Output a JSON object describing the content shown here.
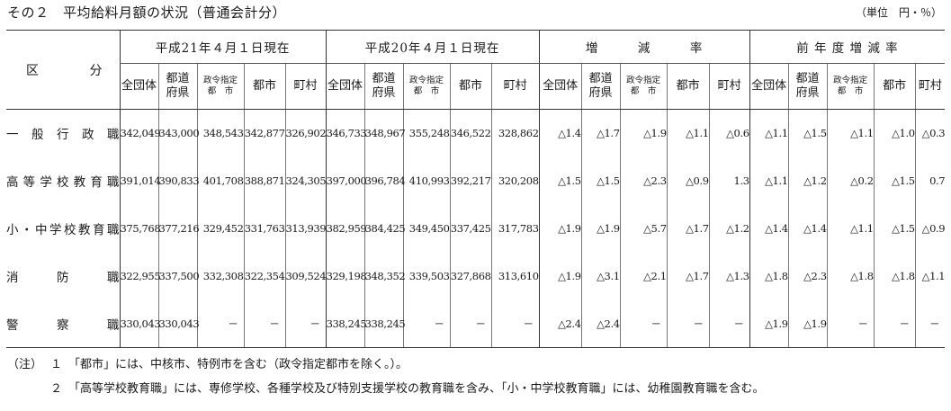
{
  "title": "その２　平均給料月額の状況（普通会計分）",
  "unit": "（単位　円・％）",
  "corner_label": [
    "区",
    "分"
  ],
  "groups": [
    "平成21年４月１日現在",
    "平成20年４月１日現在",
    "増　　　減　　　率",
    "前 年 度 増 減 率"
  ],
  "subheaders": [
    {
      "text": "全団体",
      "small": false
    },
    {
      "text": "都道\n府県",
      "small": false
    },
    {
      "text": "政令指定\n都　市",
      "small": true
    },
    {
      "text": "都市",
      "small": false
    },
    {
      "text": "町村",
      "small": false
    }
  ],
  "rows": [
    {
      "label": "一般行政職",
      "values": [
        "342,049",
        "343,000",
        "348,543",
        "342,877",
        "326,902",
        "346,733",
        "348,967",
        "355,248",
        "346,522",
        "328,862",
        "△1.4",
        "△1.7",
        "△1.9",
        "△1.1",
        "△0.6",
        "△1.1",
        "△1.5",
        "△1.1",
        "△1.0",
        "△0.3"
      ]
    },
    {
      "label": "高等学校教育職",
      "values": [
        "391,014",
        "390,833",
        "401,708",
        "388,871",
        "324,305",
        "397,000",
        "396,784",
        "410,993",
        "392,217",
        "320,208",
        "△1.5",
        "△1.5",
        "△2.3",
        "△0.9",
        "1.3",
        "△1.1",
        "△1.2",
        "△0.2",
        "△1.5",
        "0.7"
      ]
    },
    {
      "label": "小・中学校教育職",
      "values": [
        "375,768",
        "377,216",
        "329,452",
        "331,763",
        "313,939",
        "382,959",
        "384,425",
        "349,450",
        "337,425",
        "317,783",
        "△1.9",
        "△1.9",
        "△5.7",
        "△1.7",
        "△1.2",
        "△1.4",
        "△1.4",
        "△1.1",
        "△1.5",
        "△0.9"
      ]
    },
    {
      "label": "消防職",
      "values": [
        "322,955",
        "337,500",
        "332,308",
        "322,354",
        "309,524",
        "329,198",
        "348,352",
        "339,503",
        "327,868",
        "313,610",
        "△1.9",
        "△3.1",
        "△2.1",
        "△1.7",
        "△1.3",
        "△1.8",
        "△2.3",
        "△1.8",
        "△1.8",
        "△1.1"
      ]
    },
    {
      "label": "警察職",
      "values": [
        "330,043",
        "330,043",
        "－",
        "－",
        "－",
        "338,245",
        "338,245",
        "－",
        "－",
        "－",
        "△2.4",
        "△2.4",
        "－",
        "－",
        "－",
        "△1.9",
        "△1.9",
        "－",
        "－",
        "－"
      ]
    }
  ],
  "notes": {
    "label": "（注）",
    "items": [
      {
        "num": "１",
        "text": "「都市」には、中核市、特例市を含む（政令指定都市を除く。）。"
      },
      {
        "num": "２",
        "text": "「高等学校教育職」には、専修学校、各種学校及び特別支援学校の教育職を含み、「小・中学校教育職」には、幼稚園教育職を含む。"
      }
    ]
  }
}
